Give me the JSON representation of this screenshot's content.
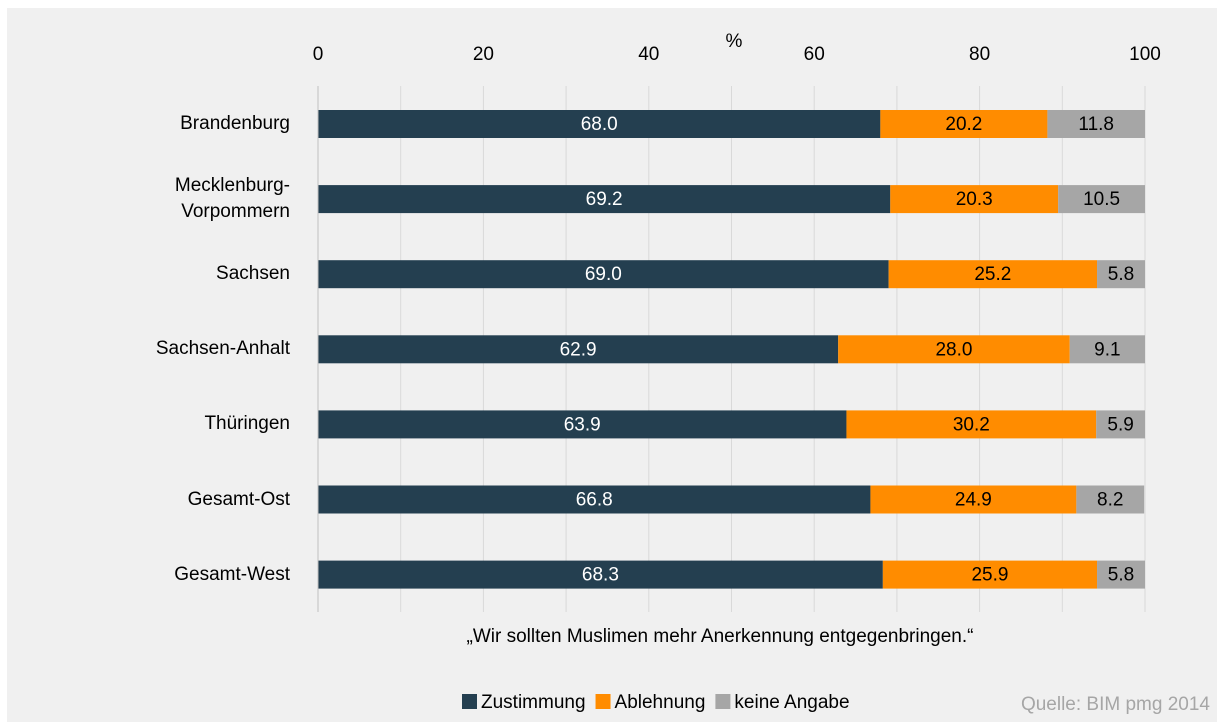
{
  "chart_data": {
    "type": "stacked_barh",
    "categories": [
      "Brandenburg",
      "Mecklenburg-\nVorpommern",
      "Sachsen",
      "Sachsen-Anhalt",
      "Thüringen",
      "Gesamt-Ost",
      "Gesamt-West"
    ],
    "series": [
      {
        "name": "Zustimmung",
        "color": "#243f50",
        "label_color": "#ffffff",
        "values": [
          68.0,
          69.2,
          69.0,
          62.9,
          63.9,
          66.8,
          68.3
        ],
        "value_labels": [
          "68.0",
          "69.2",
          "69.0",
          "62.9",
          "63.9",
          "66.8",
          "68.3"
        ]
      },
      {
        "name": "Ablehnung",
        "color": "#ff8c00",
        "label_color": "#000000",
        "values": [
          20.2,
          20.3,
          25.2,
          28.0,
          30.2,
          24.9,
          25.9
        ],
        "value_labels": [
          "20.2",
          "20.3",
          "25.2",
          "28.0",
          "30.2",
          "24.9",
          "25.9"
        ]
      },
      {
        "name": "keine Angabe",
        "color": "#a6a6a6",
        "label_color": "#000000",
        "values": [
          11.8,
          10.5,
          5.8,
          9.1,
          5.9,
          8.2,
          5.8
        ],
        "value_labels": [
          "11.8",
          "10.5",
          "5.8",
          "9.1",
          "5.9",
          "8.2",
          "5.8"
        ]
      }
    ],
    "xlabel": "%",
    "xlim": [
      0,
      100
    ],
    "xticks": [
      0,
      20,
      40,
      60,
      80,
      100
    ],
    "xgrid": [
      0,
      10,
      20,
      30,
      40,
      50,
      60,
      70,
      80,
      90,
      100
    ],
    "note": "„Wir sollten Muslimen mehr Anerkennung entgegenbringen.“",
    "source": "Quelle: BIM pmg 2014",
    "legend": "bottom"
  }
}
